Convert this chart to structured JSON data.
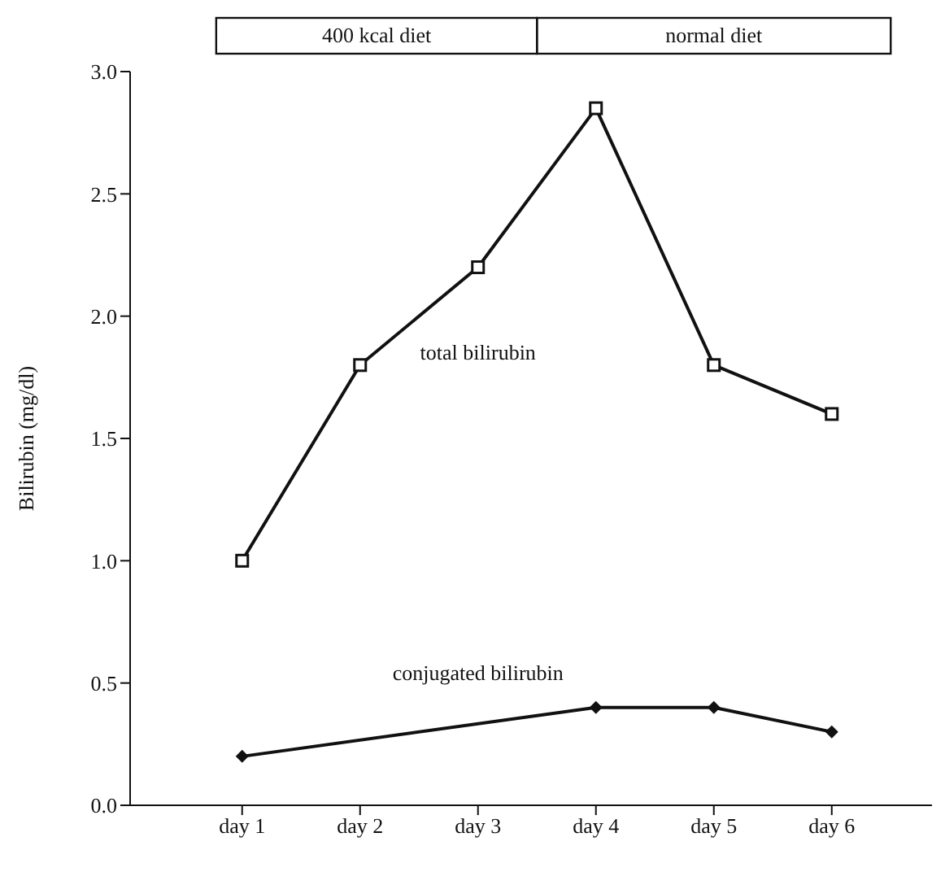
{
  "chart_data": {
    "type": "line",
    "ylabel": "Bilirubin (mg/dl)",
    "categories": [
      "day 1",
      "day 2",
      "day 3",
      "day 4",
      "day 5",
      "day 6"
    ],
    "ylim": [
      0,
      3
    ],
    "yticks": [
      {
        "value": 0,
        "label": "0.0"
      },
      {
        "value": 0.5,
        "label": "0.5"
      },
      {
        "value": 1,
        "label": "1.0"
      },
      {
        "value": 1.5,
        "label": "1.5"
      },
      {
        "value": 2,
        "label": "2.0"
      },
      {
        "value": 2.5,
        "label": "2.5"
      },
      {
        "value": 3,
        "label": "3.0"
      }
    ],
    "series": [
      {
        "name": "total bilirubin",
        "color": "#111111",
        "marker": "square",
        "values": [
          1.0,
          1.8,
          2.2,
          2.85,
          1.8,
          1.6
        ]
      },
      {
        "name": "conjugated bilirubin",
        "color": "#111111",
        "marker": "diamond",
        "values": [
          0.2,
          null,
          null,
          0.4,
          0.4,
          0.3
        ]
      }
    ],
    "annotations": [
      "400 kcal diet",
      "normal diet"
    ],
    "line_style": "solid"
  }
}
